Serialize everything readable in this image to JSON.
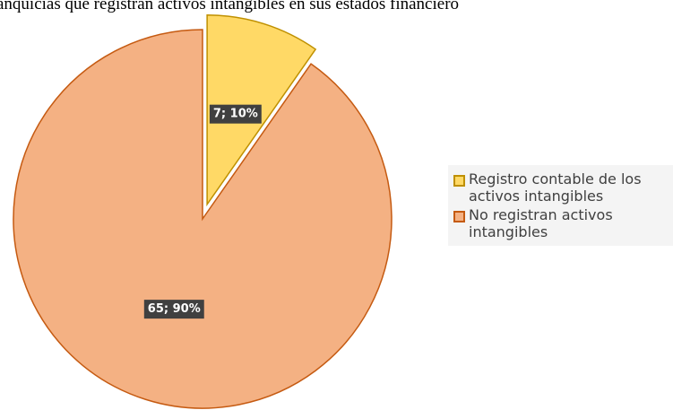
{
  "chart_data": {
    "type": "pie",
    "title": "anquicias que registran activos intangibles en sus estados financiero",
    "categories": [
      "Registro contable de los activos intangibles",
      "No registran activos intangibles"
    ],
    "values": [
      7,
      65
    ],
    "value_labels": [
      "7; 10%",
      "65; 90%"
    ],
    "colors": [
      "#FFD966",
      "#F4B183"
    ],
    "legend": "right"
  }
}
